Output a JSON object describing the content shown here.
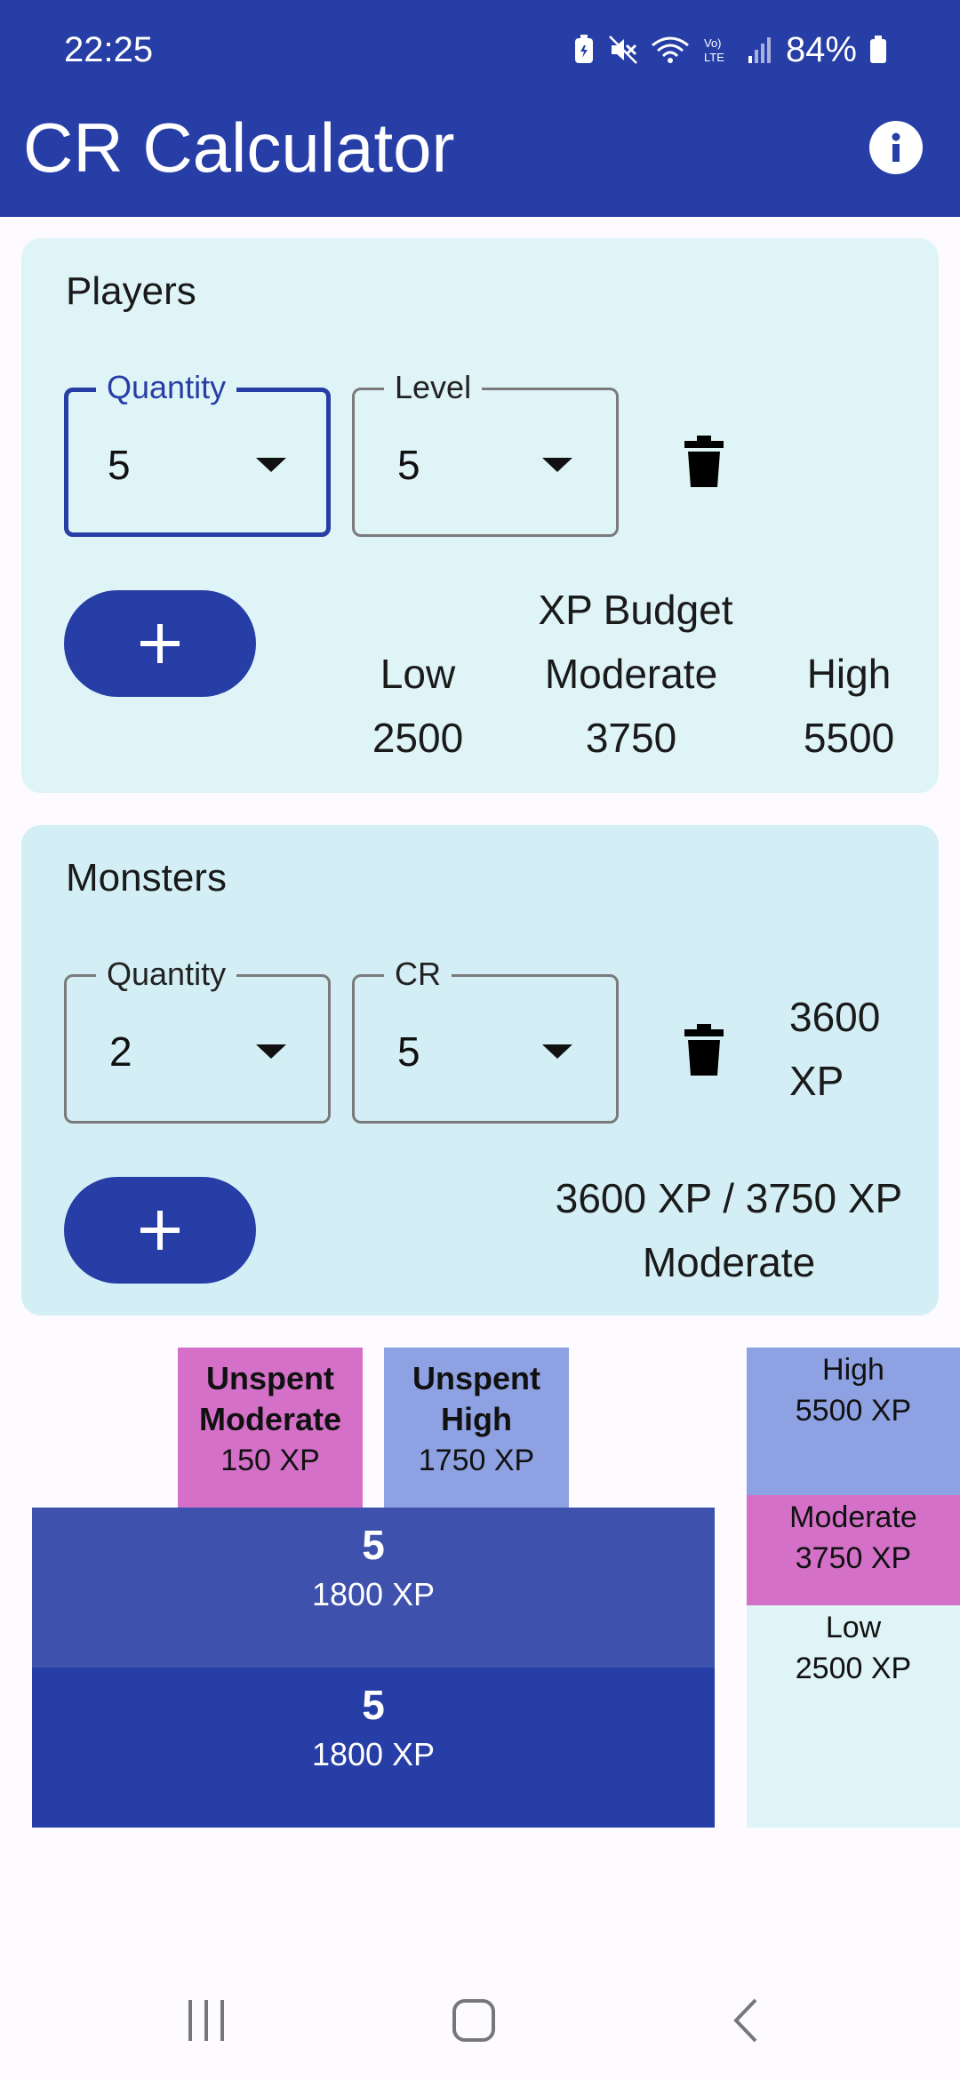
{
  "status": {
    "time": "22:25",
    "battery": "84%"
  },
  "app": {
    "title": "CR Calculator"
  },
  "players": {
    "title": "Players",
    "quantity": {
      "label": "Quantity",
      "value": "5"
    },
    "level": {
      "label": "Level",
      "value": "5"
    },
    "budget": {
      "heading": "XP Budget",
      "low_label": "Low",
      "low_value": "2500",
      "moderate_label": "Moderate",
      "moderate_value": "3750",
      "high_label": "High",
      "high_value": "5500"
    }
  },
  "monsters": {
    "title": "Monsters",
    "quantity": {
      "label": "Quantity",
      "value": "2"
    },
    "cr": {
      "label": "CR",
      "value": "5"
    },
    "row_xp_value": "3600",
    "row_xp_unit": "XP",
    "summary_line1": "3600 XP / 3750 XP",
    "summary_line2": "Moderate"
  },
  "chart": {
    "unspent_moderate": {
      "title1": "Unspent",
      "title2": "Moderate",
      "xp": "150 XP"
    },
    "unspent_high": {
      "title1": "Unspent",
      "title2": "High",
      "xp": "1750 XP"
    },
    "monster_blocks": [
      {
        "cr": "5",
        "xp": "1800 XP"
      },
      {
        "cr": "5",
        "xp": "1800 XP"
      }
    ],
    "thresholds": {
      "high": {
        "label": "High",
        "xp": "5500 XP"
      },
      "moderate": {
        "label": "Moderate",
        "xp": "3750 XP"
      },
      "low": {
        "label": "Low",
        "xp": "2500 XP"
      }
    },
    "colors": {
      "pink": "#d570c8",
      "lavender": "#8ea2e3",
      "blue_light": "#3d51ad",
      "blue_dark": "#263ea5",
      "low_band": "#dff4f7"
    }
  },
  "icons": {
    "info": "info-icon",
    "delete": "trash-icon",
    "add": "plus-icon",
    "caret": "caret-down-icon",
    "nav_recents": "recents-icon",
    "nav_home": "home-icon",
    "nav_back": "back-icon"
  }
}
